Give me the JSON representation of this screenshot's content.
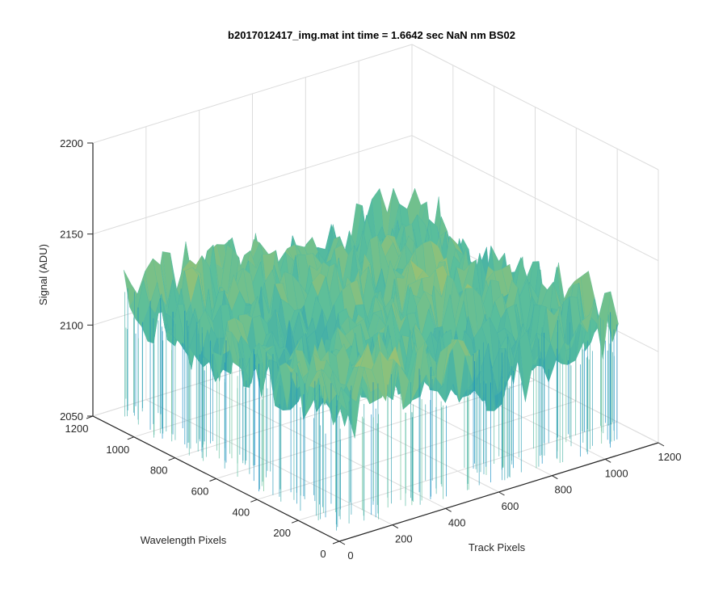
{
  "chart_data": {
    "type": "surface3d",
    "title": "b2017012417_img.mat int time = 1.6642 sec  NaN nm BS02",
    "xlabel": "Track Pixels",
    "ylabel": "Wavelength Pixels",
    "zlabel": "Signal (ADU)",
    "xlim": [
      0,
      1200
    ],
    "ylim": [
      0,
      1200
    ],
    "zlim": [
      2050,
      2200
    ],
    "x_ticks": [
      "0",
      "200",
      "400",
      "600",
      "800",
      "1000",
      "1200"
    ],
    "y_ticks": [
      "0",
      "200",
      "400",
      "600",
      "800",
      "1000",
      "1200"
    ],
    "z_ticks": [
      "2050",
      "2100",
      "2150",
      "2200"
    ],
    "grid": true,
    "colormap": "parula",
    "surface_summary": {
      "mean_signal": 2120,
      "min_signal": 2070,
      "max_signal": 2170,
      "x_extent": [
        0,
        1050
      ],
      "y_extent": [
        0,
        1050
      ]
    }
  },
  "colors": {
    "axis": "#262626",
    "grid": "#dcdcdc",
    "low": "#0a86c6",
    "mid": "#5bbf9b",
    "high": "#f2c43a"
  }
}
